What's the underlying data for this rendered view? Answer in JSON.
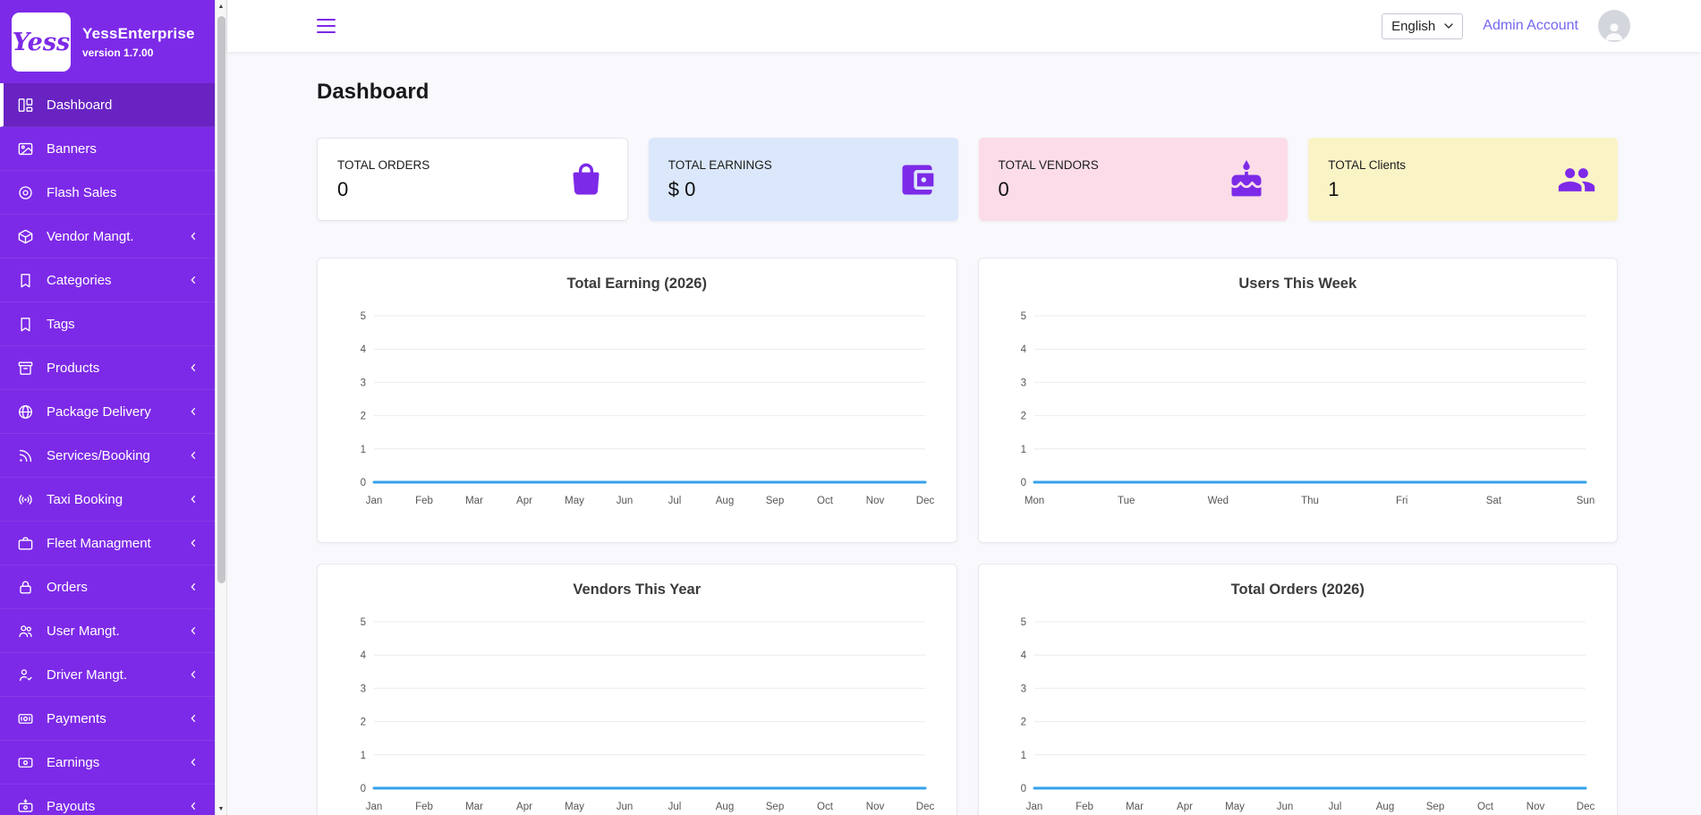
{
  "app": {
    "name": "YessEnterprise",
    "version": "version 1.7.00",
    "logo_text": "Yess"
  },
  "header": {
    "language": "English",
    "account": "Admin Account"
  },
  "page": {
    "title": "Dashboard"
  },
  "colors": {
    "sidebar": "#7d2ae8",
    "accent": "#7d2ae8",
    "link": "#7367f0",
    "chart_line": "#36a2eb"
  },
  "sidebar": {
    "items": [
      {
        "label": "Dashboard",
        "icon": "dashboard-icon",
        "active": true,
        "chevron": false
      },
      {
        "label": "Banners",
        "icon": "image-icon",
        "active": false,
        "chevron": false
      },
      {
        "label": "Flash Sales",
        "icon": "flash-icon",
        "active": false,
        "chevron": false
      },
      {
        "label": "Vendor Mangt.",
        "icon": "vendor-icon",
        "active": false,
        "chevron": true
      },
      {
        "label": "Categories",
        "icon": "bookmark-icon",
        "active": false,
        "chevron": true
      },
      {
        "label": "Tags",
        "icon": "tag-icon",
        "active": false,
        "chevron": false
      },
      {
        "label": "Products",
        "icon": "products-icon",
        "active": false,
        "chevron": true
      },
      {
        "label": "Package Delivery",
        "icon": "package-icon",
        "active": false,
        "chevron": true
      },
      {
        "label": "Services/Booking",
        "icon": "services-icon",
        "active": false,
        "chevron": true
      },
      {
        "label": "Taxi Booking",
        "icon": "taxi-icon",
        "active": false,
        "chevron": true
      },
      {
        "label": "Fleet Managment",
        "icon": "fleet-icon",
        "active": false,
        "chevron": true
      },
      {
        "label": "Orders",
        "icon": "orders-icon",
        "active": false,
        "chevron": true
      },
      {
        "label": "User Mangt.",
        "icon": "users-icon",
        "active": false,
        "chevron": true
      },
      {
        "label": "Driver Mangt.",
        "icon": "driver-icon",
        "active": false,
        "chevron": true
      },
      {
        "label": "Payments",
        "icon": "payments-icon",
        "active": false,
        "chevron": true
      },
      {
        "label": "Earnings",
        "icon": "earnings-icon",
        "active": false,
        "chevron": true
      },
      {
        "label": "Payouts",
        "icon": "payouts-icon",
        "active": false,
        "chevron": true
      }
    ]
  },
  "stats": [
    {
      "label": "TOTAL ORDERS",
      "value": "0",
      "icon": "shopping-bag-icon",
      "bg": "#ffffff"
    },
    {
      "label": "TOTAL EARNINGS",
      "value": "$ 0",
      "icon": "wallet-icon",
      "bg": "#dbe7fb"
    },
    {
      "label": "TOTAL VENDORS",
      "value": "0",
      "icon": "cake-icon",
      "bg": "#fbdce8"
    },
    {
      "label": "TOTAL Clients",
      "value": "1",
      "icon": "clients-icon",
      "bg": "#faf3c6"
    }
  ],
  "chart_data": [
    {
      "type": "line",
      "title": "Total Earning (2026)",
      "categories": [
        "Jan",
        "Feb",
        "Mar",
        "Apr",
        "May",
        "Jun",
        "Jul",
        "Aug",
        "Sep",
        "Oct",
        "Nov",
        "Dec"
      ],
      "series": [
        {
          "values": [
            0,
            0,
            0,
            0,
            0,
            0,
            0,
            0,
            0,
            0,
            0,
            0
          ]
        }
      ],
      "ylim": [
        0,
        5
      ],
      "yticks": [
        0,
        1,
        2,
        3,
        4,
        5
      ],
      "grid": true,
      "legend": false,
      "line_color": "#36a2eb"
    },
    {
      "type": "line",
      "title": "Users This Week",
      "categories": [
        "Mon",
        "Tue",
        "Wed",
        "Thu",
        "Fri",
        "Sat",
        "Sun"
      ],
      "series": [
        {
          "values": [
            0,
            0,
            0,
            0,
            0,
            0,
            0
          ]
        }
      ],
      "ylim": [
        0,
        5
      ],
      "yticks": [
        0,
        1,
        2,
        3,
        4,
        5
      ],
      "grid": true,
      "legend": false,
      "line_color": "#36a2eb"
    },
    {
      "type": "line",
      "title": "Vendors This Year",
      "categories": [
        "Jan",
        "Feb",
        "Mar",
        "Apr",
        "May",
        "Jun",
        "Jul",
        "Aug",
        "Sep",
        "Oct",
        "Nov",
        "Dec"
      ],
      "series": [
        {
          "values": [
            0,
            0,
            0,
            0,
            0,
            0,
            0,
            0,
            0,
            0,
            0,
            0
          ]
        }
      ],
      "ylim": [
        0,
        5
      ],
      "yticks": [
        0,
        1,
        2,
        3,
        4,
        5
      ],
      "grid": true,
      "legend": false,
      "line_color": "#36a2eb"
    },
    {
      "type": "line",
      "title": "Total Orders (2026)",
      "categories": [
        "Jan",
        "Feb",
        "Mar",
        "Apr",
        "May",
        "Jun",
        "Jul",
        "Aug",
        "Sep",
        "Oct",
        "Nov",
        "Dec"
      ],
      "series": [
        {
          "values": [
            0,
            0,
            0,
            0,
            0,
            0,
            0,
            0,
            0,
            0,
            0,
            0
          ]
        }
      ],
      "ylim": [
        0,
        5
      ],
      "yticks": [
        0,
        1,
        2,
        3,
        4,
        5
      ],
      "grid": true,
      "legend": false,
      "line_color": "#36a2eb"
    }
  ]
}
